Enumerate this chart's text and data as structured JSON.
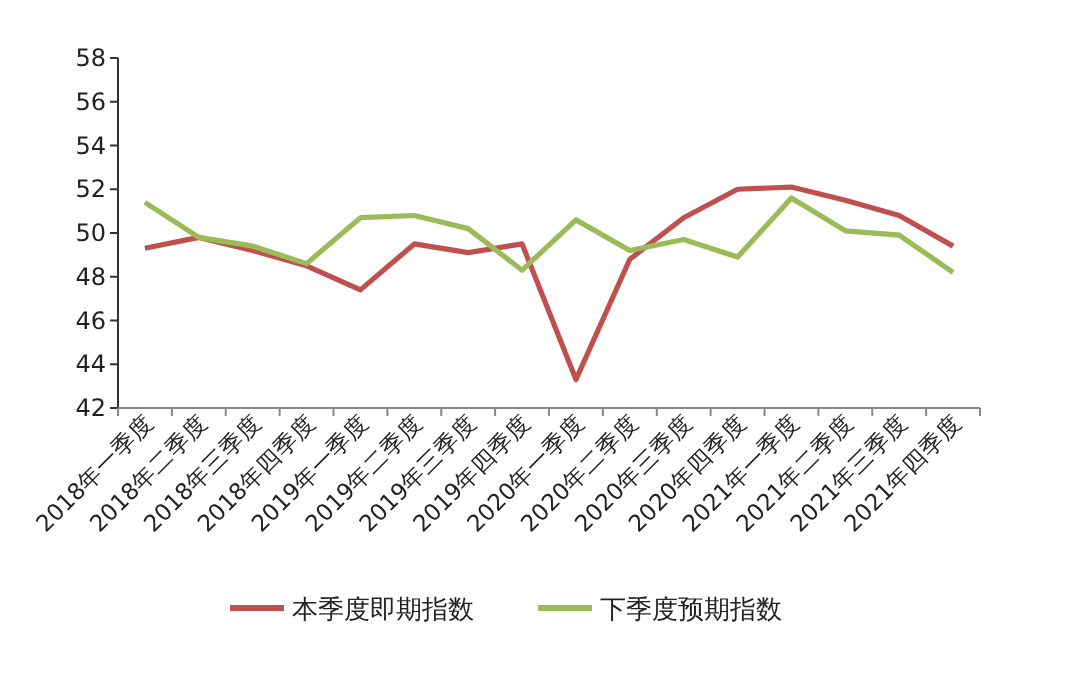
{
  "chart_data": {
    "type": "line",
    "categories": [
      "2018年一季度",
      "2018年二季度",
      "2018年三季度",
      "2018年四季度",
      "2019年一季度",
      "2019年二季度",
      "2019年三季度",
      "2019年四季度",
      "2020年一季度",
      "2020年二季度",
      "2020年三季度",
      "2020年四季度",
      "2021年一季度",
      "2021年二季度",
      "2021年三季度",
      "2021年四季度"
    ],
    "series": [
      {
        "name": "本季度即期指数",
        "color": "#c0504d",
        "values": [
          49.3,
          49.8,
          49.2,
          48.5,
          47.4,
          49.5,
          49.1,
          49.5,
          43.3,
          48.8,
          50.7,
          52.0,
          52.1,
          51.5,
          50.8,
          49.4
        ]
      },
      {
        "name": "下季度预期指数",
        "color": "#9bbb59",
        "values": [
          51.4,
          49.8,
          49.4,
          48.6,
          50.7,
          50.8,
          50.2,
          48.3,
          50.6,
          49.2,
          49.7,
          48.9,
          51.6,
          50.1,
          49.9,
          48.2
        ]
      }
    ],
    "ylim": [
      42,
      58
    ],
    "yticks": [
      42,
      44,
      46,
      48,
      50,
      52,
      54,
      56,
      58
    ],
    "grid": false,
    "legend": "bottom",
    "marker": "none",
    "line_style": "solid"
  }
}
